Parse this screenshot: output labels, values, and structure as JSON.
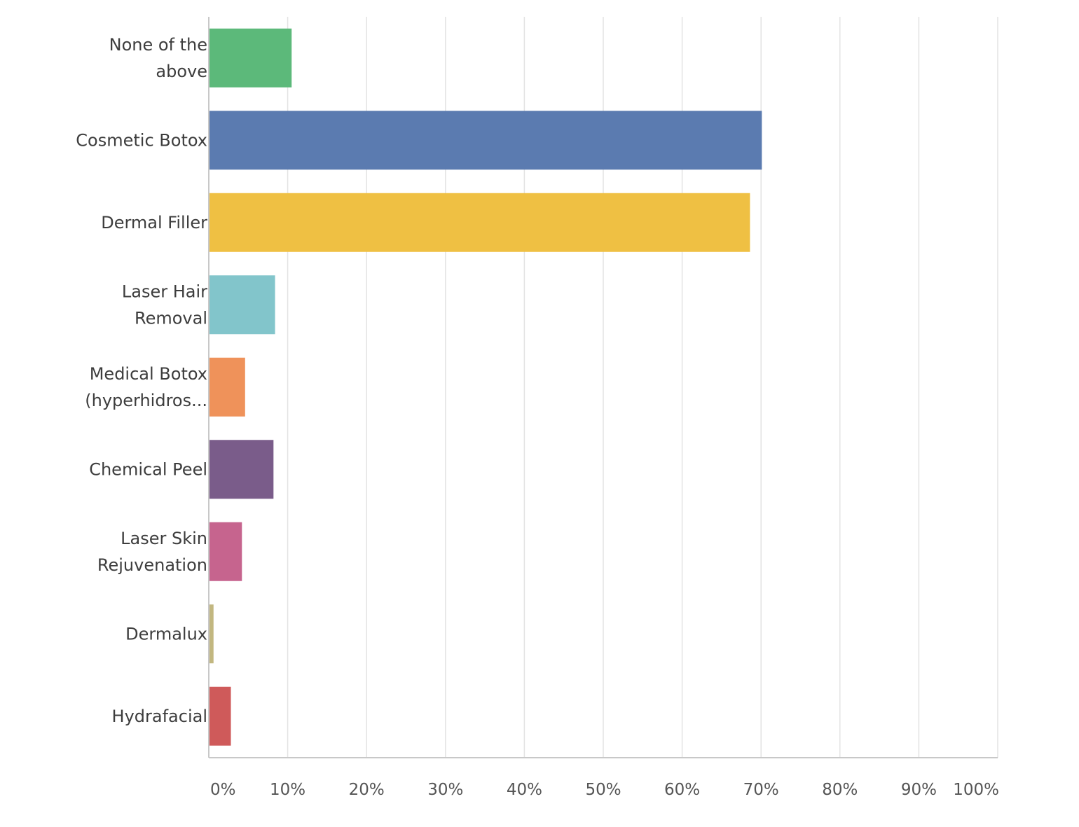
{
  "chart_data": {
    "type": "bar",
    "orientation": "horizontal",
    "title": "",
    "xlabel": "",
    "ylabel": "",
    "categories": [
      [
        "None of the",
        "above"
      ],
      [
        "Cosmetic Botox"
      ],
      [
        "Dermal Filler"
      ],
      [
        "Laser Hair",
        "Removal"
      ],
      [
        "Medical Botox",
        "(hyperhidros..."
      ],
      [
        "Chemical Peel"
      ],
      [
        "Laser Skin",
        "Rejuvenation"
      ],
      [
        "Dermalux"
      ],
      [
        "Hydrafacial"
      ]
    ],
    "values": [
      10.5,
      70.1,
      68.6,
      8.4,
      4.6,
      8.2,
      4.2,
      0.6,
      2.8
    ],
    "colors": [
      "#5cb97a",
      "#5b7bb0",
      "#efc043",
      "#82c5cb",
      "#ef925a",
      "#7a5c8a",
      "#c6648e",
      "#c2b780",
      "#cf5a5a"
    ],
    "xlim": [
      0,
      100
    ],
    "ticks": [
      "0%",
      "10%",
      "20%",
      "30%",
      "40%",
      "50%",
      "60%",
      "70%",
      "80%",
      "90%",
      "100%"
    ],
    "grid": true,
    "legend": "none"
  }
}
